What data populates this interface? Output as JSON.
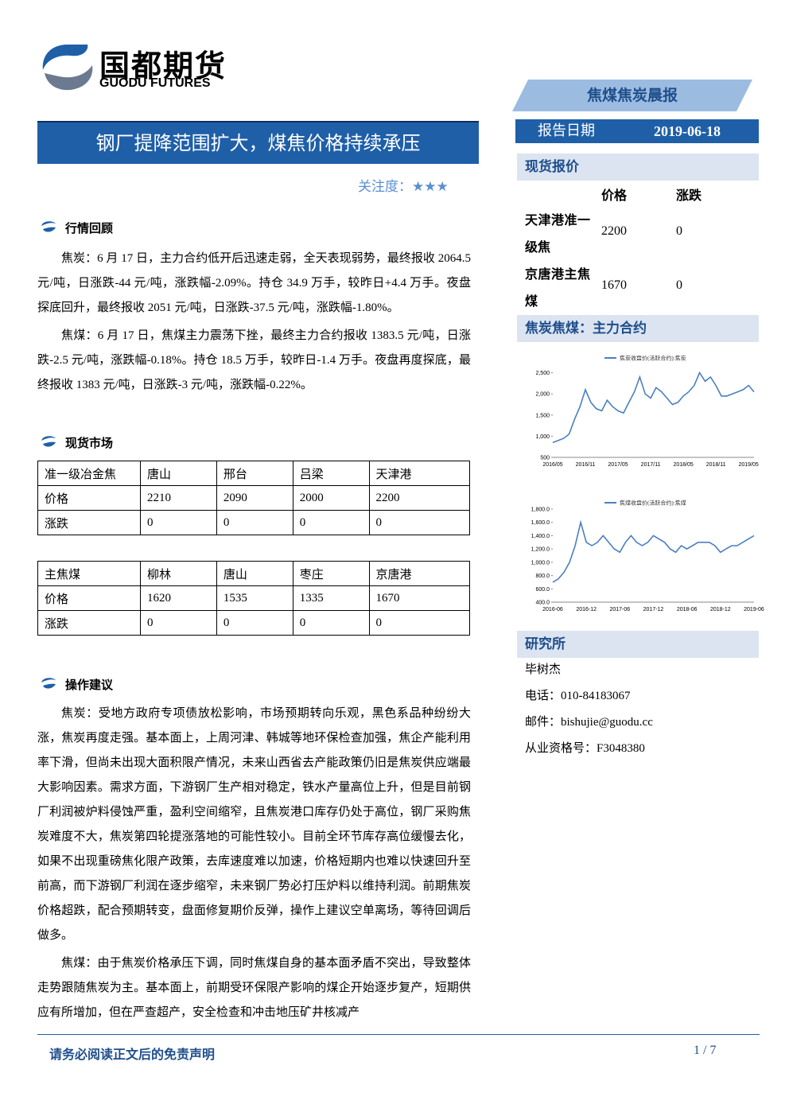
{
  "header": {
    "logo_cn": "国都期货",
    "logo_en": "GUODU FUTURES",
    "report_type": "焦煤焦炭晨报",
    "date_label": "报告日期",
    "date": "2019-06-18"
  },
  "title": "钢厂提降范围扩大，煤焦价格持续承压",
  "attention": "关注度：★★★",
  "sections": [
    {
      "heading": "行情回顾",
      "paragraphs": [
        "焦炭：6 月 17 日，主力合约低开后迅速走弱，全天表现弱势，最终报收 2064.5 元/吨，日涨跌-44 元/吨，涨跌幅-2.09%。持仓 34.9 万手，较昨日+4.4 万手。夜盘探底回升，最终报收 2051 元/吨，日涨跌-37.5 元/吨，涨跌幅-1.80%。",
        "焦煤：6 月 17 日，焦煤主力震荡下挫，最终主力合约报收 1383.5 元/吨，日涨跌-2.5 元/吨，涨跌幅-0.18%。持仓 18.5 万手，较昨日-1.4 万手。夜盘再度探底，最终报收 1383 元/吨，日涨跌-3 元/吨，涨跌幅-0.22%。"
      ]
    },
    {
      "heading": "现货市场",
      "tables": [
        {
          "rows": [
            [
              "准一级冶金焦",
              "唐山",
              "邢台",
              "吕梁",
              "天津港"
            ],
            [
              "价格",
              "2210",
              "2090",
              "2000",
              "2200"
            ],
            [
              "涨跌",
              "0",
              "0",
              "0",
              "0"
            ]
          ]
        },
        {
          "rows": [
            [
              "主焦煤",
              "柳林",
              "唐山",
              "枣庄",
              "京唐港"
            ],
            [
              "价格",
              "1620",
              "1535",
              "1335",
              "1670"
            ],
            [
              "涨跌",
              "0",
              "0",
              "0",
              "0"
            ]
          ]
        }
      ]
    },
    {
      "heading": "操作建议",
      "paragraphs": [
        "焦炭：受地方政府专项债放松影响，市场预期转向乐观，黑色系品种纷纷大涨，焦炭再度走强。基本面上，上周河津、韩城等地环保检查加强，焦企产能利用率下滑，但尚未出现大面积限产情况，未来山西省去产能政策仍旧是焦炭供应端最大影响因素。需求方面，下游钢厂生产相对稳定，铁水产量高位上升，但是目前钢厂利润被炉料侵蚀严重，盈利空间缩窄，且焦炭港口库存仍处于高位，钢厂采购焦炭难度不大，焦炭第四轮提涨落地的可能性较小。目前全环节库存高位缓慢去化，如果不出现重磅焦化限产政策，去库速度难以加速，价格短期内也难以快速回升至前高，而下游钢厂利润在逐步缩窄，未来钢厂势必打压炉料以维持利润。前期焦炭价格超跌，配合预期转变，盘面修复期价反弹，操作上建议空单离场，等待回调后做多。",
        "焦煤：由于焦炭价格承压下调，同时焦煤自身的基本面矛盾不突出，导致整体走势跟随焦炭为主。基本面上，前期受环保限产影响的煤企开始逐步复产，短期供应有所增加，但在严查超产，安全检查和冲击地压矿井核减产"
      ]
    }
  ],
  "sidebar": {
    "spot_heading": "现货报价",
    "spot_header": [
      "价格",
      "涨跌"
    ],
    "spot_rows": [
      [
        "天津港准一级焦",
        "2200",
        "0"
      ],
      [
        "京唐港主焦煤",
        "1670",
        "0"
      ]
    ],
    "chart_heading": "焦炭焦煤：主力合约",
    "research_heading": "研究所",
    "contacts": [
      "毕树杰",
      "电话：010-84183067",
      "邮件：bishujie@guodu.cc",
      "从业资格号：F3048380"
    ]
  },
  "chart_data": [
    {
      "type": "line",
      "categories": [
        "2016/05",
        null,
        null,
        null,
        null,
        null,
        "2016/11",
        null,
        null,
        null,
        null,
        null,
        "2017/05",
        null,
        null,
        null,
        null,
        null,
        "2017/11",
        null,
        null,
        null,
        null,
        null,
        "2018/05",
        null,
        null,
        null,
        null,
        null,
        "2018/11",
        null,
        null,
        null,
        null,
        null,
        "2019/05",
        null
      ],
      "series": [
        {
          "name": "焦炭收盘价(活跃合约):焦炭",
          "color": "#4a7fc1",
          "values": [
            850,
            900,
            950,
            1050,
            1400,
            1700,
            2100,
            1800,
            1650,
            1600,
            1850,
            1700,
            1600,
            1550,
            1800,
            2050,
            2400,
            2000,
            1900,
            2150,
            2050,
            1900,
            1750,
            1800,
            1950,
            2050,
            2200,
            2500,
            2300,
            2400,
            2200,
            1950,
            1950,
            2000,
            2050,
            2100,
            2200,
            2050
          ]
        }
      ],
      "ylim": [
        500,
        2700
      ],
      "yticks": [
        500,
        {
          "value": 1000,
          "label": "1,000"
        },
        {
          "value": 1500,
          "label": "1,500"
        },
        {
          "value": 2000,
          "label": "2,000"
        },
        {
          "value": 2500,
          "label": "2,500"
        }
      ]
    },
    {
      "type": "line",
      "categories": [
        "2016-06",
        null,
        null,
        null,
        null,
        null,
        "2016-12",
        null,
        null,
        null,
        null,
        null,
        "2017-06",
        null,
        null,
        null,
        null,
        null,
        "2017-12",
        null,
        null,
        null,
        null,
        null,
        "2018-06",
        null,
        null,
        null,
        null,
        null,
        "2018-12",
        null,
        null,
        null,
        null,
        null,
        "2019-06"
      ],
      "series": [
        {
          "name": "焦煤收盘价(活跃合约):焦煤",
          "color": "#4a7fc1",
          "values": [
            700,
            750,
            850,
            1000,
            1250,
            1600,
            1300,
            1250,
            1300,
            1400,
            1300,
            1200,
            1150,
            1300,
            1400,
            1300,
            1250,
            1300,
            1400,
            1350,
            1300,
            1200,
            1150,
            1250,
            1200,
            1250,
            1300,
            1300,
            1300,
            1250,
            1150,
            1200,
            1250,
            1250,
            1300,
            1350,
            1400
          ]
        }
      ],
      "ylim": [
        400,
        1800
      ],
      "yticks": [
        {
          "value": 400,
          "label": "400.0"
        },
        {
          "value": 600,
          "label": "600.0"
        },
        {
          "value": 800,
          "label": "800.0"
        },
        {
          "value": 1000,
          "label": "1,000.0"
        },
        {
          "value": 1200,
          "label": "1,200.0"
        },
        {
          "value": 1400,
          "label": "1,400.0"
        },
        {
          "value": 1600,
          "label": "1,600.0"
        },
        {
          "value": 1800,
          "label": "1,800.0"
        }
      ]
    }
  ],
  "footer": {
    "disclaimer": "请务必阅读正文后的免责声明",
    "page": "1 / 7"
  }
}
